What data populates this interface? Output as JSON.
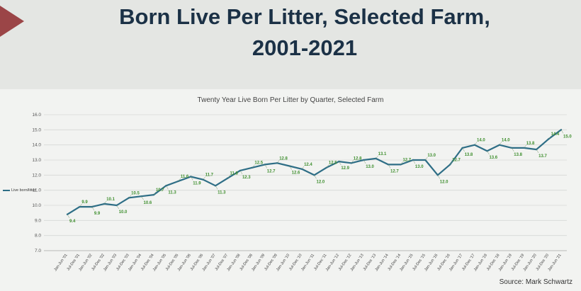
{
  "slide": {
    "title_line1": "Born Live Per Litter, Selected Farm,",
    "title_line2": "2001-2021",
    "source": "Source: Mark Schwartz"
  },
  "colors": {
    "line": "#2e6e86",
    "labels": "#3f8f2f",
    "title": "#1b3146",
    "arrow": "#9b4547"
  },
  "chart_data": {
    "type": "line",
    "title": "Twenty Year Live Born Per Litter by Quarter, Selected Farm",
    "ylim": [
      7.0,
      16.0
    ],
    "yticks": [
      "16.0",
      "15.0",
      "14.0",
      "13.0",
      "12.0",
      "11.0",
      "10.0",
      "9.0",
      "8.0",
      "7.0"
    ],
    "legend": "Live born/litter",
    "legend_position": "left",
    "grid": true,
    "categories": [
      "Jan-Jun '01",
      "Jul-Dec '01",
      "Jan-Jun '02",
      "Jul-Dec '02",
      "Jan-Jun '03",
      "Jul-Dec '03",
      "Jan-Jun '04",
      "Jul-Dec '04",
      "Jan-Jun '05",
      "Jul-Dec '05",
      "Jan-Jun '06",
      "Jul-Dec '06",
      "Jan-Jun '07",
      "Jul-Dec '07",
      "Jan-Jun '08",
      "Jul-Dec '08",
      "Jan-Jun '09",
      "Jul-Dec '09",
      "Jan-Jun '10",
      "Jul-Dec '10",
      "Jan-Jun '11",
      "Jul-Dec '11",
      "Jan-Jun '12",
      "Jul-Dec '12",
      "Jan-Jun '13",
      "Jul-Dec '13",
      "Jan-Jun '14",
      "Jul-Dec '14",
      "Jan-Jun '15",
      "Jul-Dec '15",
      "Jan-Jun '16",
      "Jul-Dec '16",
      "Jan-Jun '17",
      "Jul-Dec '17",
      "Jan-Jun '18",
      "Jul-Dec '18",
      "Jan-Jun '19",
      "Jul-Dec '19",
      "Jan-Jun '20",
      "Jul-Dec '20",
      "Jan-Jun '21"
    ],
    "series": [
      {
        "name": "Live born/litter",
        "values": [
          9.4,
          9.9,
          9.9,
          10.1,
          10.0,
          10.5,
          10.6,
          10.7,
          11.3,
          11.6,
          11.9,
          11.7,
          11.3,
          11.8,
          12.3,
          12.5,
          12.7,
          12.8,
          12.6,
          12.4,
          12.0,
          12.5,
          12.9,
          12.8,
          13.0,
          13.1,
          12.7,
          12.7,
          13.0,
          13.0,
          12.0,
          12.7,
          13.8,
          14.0,
          13.6,
          14.0,
          13.8,
          13.8,
          13.7,
          14.4,
          15.0
        ]
      }
    ],
    "data_labels": [
      "9.4",
      "9.9",
      "9.9",
      "10.1",
      "10.0",
      "10.5",
      "10.6",
      "10.7",
      "11.3",
      "11.6",
      "11.9",
      "11.7",
      "11.3",
      "11.8",
      "12.3",
      "12.5",
      "12.7",
      "12.8",
      "12.6",
      "12.4",
      "12.0",
      "12.5",
      "12.9",
      "12.8",
      "13.0",
      "13.1",
      "12.7",
      "12.7",
      "13.0",
      "13.0",
      "12.0",
      "12.7",
      "13.8",
      "14.0",
      "13.6",
      "14.0",
      "13.8",
      "13.8",
      "13.7",
      "14.4",
      "15.0"
    ]
  }
}
